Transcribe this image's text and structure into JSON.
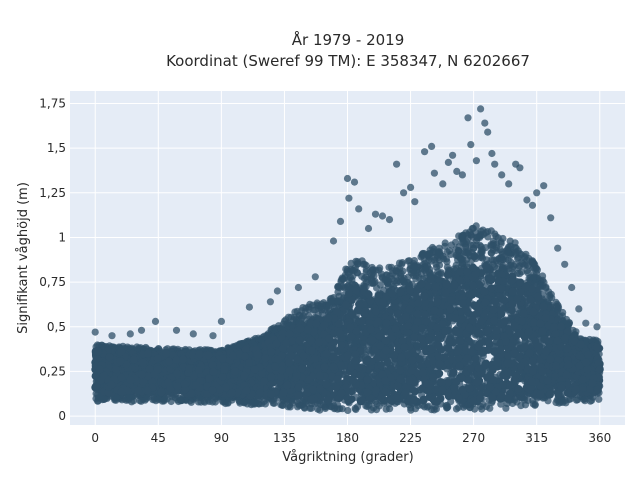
{
  "chart_data": {
    "type": "scatter",
    "title_lines": [
      "År 1979 - 2019",
      "Koordinat (Sweref 99 TM): E 358347, N 6202667"
    ],
    "xlabel": "Vågriktning (grader)",
    "ylabel": "Signifikant våghöjd (m)",
    "xlim": [
      -18,
      378
    ],
    "ylim": [
      -0.05,
      1.82
    ],
    "xticks": [
      0,
      45,
      90,
      135,
      180,
      225,
      270,
      315,
      360
    ],
    "xtick_labels": [
      "0",
      "45",
      "90",
      "135",
      "180",
      "225",
      "270",
      "315",
      "360"
    ],
    "yticks": [
      0,
      0.25,
      0.5,
      0.75,
      1,
      1.25,
      1.5,
      1.75
    ],
    "ytick_labels": [
      "0",
      "0,25",
      "0,5",
      "0,75",
      "1",
      "1,25",
      "1,5",
      "1,75"
    ],
    "grid": true,
    "plot_background": "#e5ecf6",
    "marker_color": "#2f5068",
    "marker_opacity": 0.75,
    "envelope": {
      "direction_deg": [
        0,
        45,
        90,
        120,
        135,
        150,
        165,
        175,
        180,
        190,
        200,
        210,
        225,
        240,
        255,
        265,
        270,
        280,
        290,
        300,
        315,
        330,
        345,
        360
      ],
      "dense_upper_m": [
        0.4,
        0.38,
        0.37,
        0.45,
        0.55,
        0.62,
        0.65,
        0.75,
        0.85,
        0.88,
        0.82,
        0.85,
        0.88,
        0.95,
        1.0,
        1.05,
        1.07,
        1.05,
        1.0,
        0.97,
        0.85,
        0.62,
        0.45,
        0.42
      ],
      "lower_m": [
        0.08,
        0.08,
        0.07,
        0.06,
        0.05,
        0.04,
        0.03,
        0.03,
        0.03,
        0.03,
        0.03,
        0.03,
        0.03,
        0.03,
        0.03,
        0.03,
        0.03,
        0.03,
        0.04,
        0.05,
        0.06,
        0.07,
        0.08,
        0.08
      ]
    },
    "outliers": [
      {
        "x": 0,
        "y": 0.47
      },
      {
        "x": 12,
        "y": 0.45
      },
      {
        "x": 25,
        "y": 0.46
      },
      {
        "x": 33,
        "y": 0.48
      },
      {
        "x": 43,
        "y": 0.53
      },
      {
        "x": 58,
        "y": 0.48
      },
      {
        "x": 70,
        "y": 0.46
      },
      {
        "x": 84,
        "y": 0.45
      },
      {
        "x": 90,
        "y": 0.53
      },
      {
        "x": 110,
        "y": 0.61
      },
      {
        "x": 125,
        "y": 0.64
      },
      {
        "x": 130,
        "y": 0.7
      },
      {
        "x": 145,
        "y": 0.72
      },
      {
        "x": 157,
        "y": 0.78
      },
      {
        "x": 170,
        "y": 0.98
      },
      {
        "x": 175,
        "y": 1.09
      },
      {
        "x": 180,
        "y": 1.33
      },
      {
        "x": 181,
        "y": 1.22
      },
      {
        "x": 185,
        "y": 1.31
      },
      {
        "x": 188,
        "y": 1.16
      },
      {
        "x": 195,
        "y": 1.05
      },
      {
        "x": 200,
        "y": 1.13
      },
      {
        "x": 205,
        "y": 1.12
      },
      {
        "x": 210,
        "y": 1.1
      },
      {
        "x": 215,
        "y": 1.41
      },
      {
        "x": 220,
        "y": 1.25
      },
      {
        "x": 225,
        "y": 1.28
      },
      {
        "x": 228,
        "y": 1.2
      },
      {
        "x": 235,
        "y": 1.48
      },
      {
        "x": 240,
        "y": 1.51
      },
      {
        "x": 242,
        "y": 1.36
      },
      {
        "x": 248,
        "y": 1.3
      },
      {
        "x": 252,
        "y": 1.42
      },
      {
        "x": 255,
        "y": 1.46
      },
      {
        "x": 258,
        "y": 1.37
      },
      {
        "x": 262,
        "y": 1.35
      },
      {
        "x": 266,
        "y": 1.67
      },
      {
        "x": 268,
        "y": 1.52
      },
      {
        "x": 272,
        "y": 1.43
      },
      {
        "x": 275,
        "y": 1.72
      },
      {
        "x": 278,
        "y": 1.64
      },
      {
        "x": 280,
        "y": 1.59
      },
      {
        "x": 283,
        "y": 1.47
      },
      {
        "x": 285,
        "y": 1.41
      },
      {
        "x": 290,
        "y": 1.35
      },
      {
        "x": 295,
        "y": 1.3
      },
      {
        "x": 300,
        "y": 1.41
      },
      {
        "x": 303,
        "y": 1.39
      },
      {
        "x": 308,
        "y": 1.21
      },
      {
        "x": 312,
        "y": 1.18
      },
      {
        "x": 315,
        "y": 1.25
      },
      {
        "x": 320,
        "y": 1.29
      },
      {
        "x": 325,
        "y": 1.11
      },
      {
        "x": 330,
        "y": 0.94
      },
      {
        "x": 335,
        "y": 0.85
      },
      {
        "x": 340,
        "y": 0.72
      },
      {
        "x": 345,
        "y": 0.6
      },
      {
        "x": 350,
        "y": 0.52
      },
      {
        "x": 358,
        "y": 0.5
      }
    ]
  }
}
